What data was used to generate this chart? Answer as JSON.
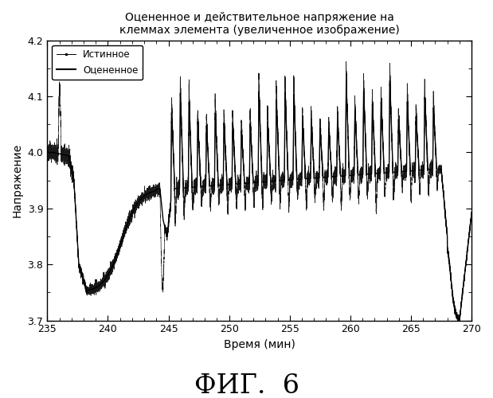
{
  "title": "Оцененное и действительное напряжение на\nклеммах элемента (увеличенное изображение)",
  "xlabel": "Время (мин)",
  "ylabel": "Напряжение",
  "xlim": [
    235,
    270
  ],
  "ylim": [
    3.7,
    4.2
  ],
  "xticks": [
    235,
    240,
    245,
    250,
    255,
    260,
    265,
    270
  ],
  "yticks": [
    3.7,
    3.8,
    3.9,
    4.0,
    4.1,
    4.2
  ],
  "legend_true": "Истинное",
  "legend_est": "Оцененное",
  "fig_label": "ФИГ.  6",
  "background_color": "#ffffff",
  "line_color": "#000000"
}
